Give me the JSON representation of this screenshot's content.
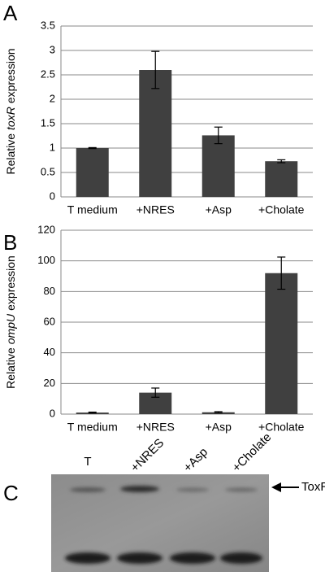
{
  "chart_data": [
    {
      "type": "bar",
      "panel": "A",
      "ylabel": [
        "Relative",
        "toxR",
        "expression"
      ],
      "categories": [
        "T medium",
        "+NRES",
        "+Asp",
        "+Cholate"
      ],
      "values": [
        1.0,
        2.6,
        1.26,
        0.73
      ],
      "errors": [
        0.01,
        0.38,
        0.17,
        0.03
      ],
      "color": "#404040",
      "ylim": [
        0,
        3.5
      ],
      "yticks": [
        0,
        0.5,
        1,
        1.5,
        2,
        2.5,
        3,
        3.5
      ],
      "grid": true
    },
    {
      "type": "bar",
      "panel": "B",
      "ylabel": [
        "Relative",
        "ompU",
        "expression"
      ],
      "categories": [
        "T medium",
        "+NRES",
        "+Asp",
        "+Cholate"
      ],
      "values": [
        1,
        14,
        1.2,
        92
      ],
      "errors": [
        0.3,
        3,
        0.4,
        10.5
      ],
      "color": "#404040",
      "ylim": [
        0,
        120
      ],
      "yticks": [
        0,
        20,
        40,
        60,
        80,
        100,
        120
      ],
      "grid": true
    }
  ],
  "blot": {
    "panel": "C",
    "lanes": [
      "T",
      "+NRES",
      "+Asp",
      "+Cholate"
    ],
    "band_label": "ToxR"
  }
}
